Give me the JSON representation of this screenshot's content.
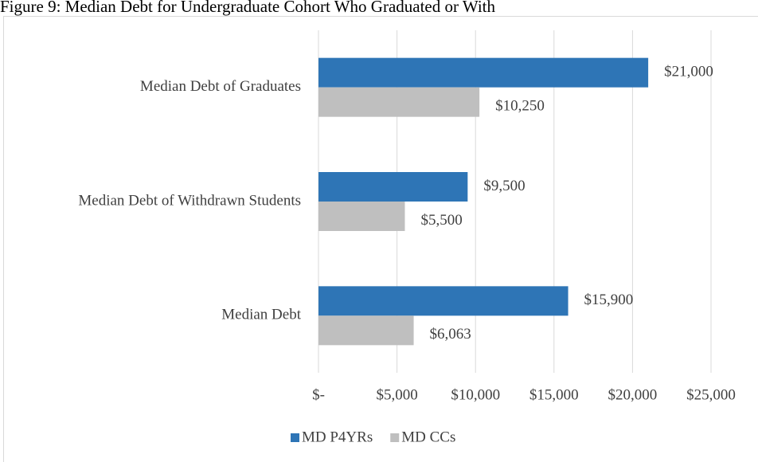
{
  "chart_data": {
    "type": "hbar",
    "title": "Figure 9: Median Debt for Undergraduate Cohort Who Graduated or With",
    "categories": [
      "Median Debt of Graduates",
      "Median Debt of Withdrawn Students",
      "Median Debt"
    ],
    "series": [
      {
        "name": "MD P4YRs",
        "color": "#2e75b6",
        "values": [
          21000,
          9500,
          15900
        ],
        "value_labels": [
          "$21,000",
          "$9,500",
          "$15,900"
        ]
      },
      {
        "name": "MD CCs",
        "color": "#bfbfbf",
        "values": [
          10250,
          5500,
          6063
        ],
        "value_labels": [
          "$10,250",
          "$5,500",
          "$6,063"
        ]
      }
    ],
    "xlim": [
      0,
      25000
    ],
    "xticks": [
      {
        "value": 0,
        "label": "$-"
      },
      {
        "value": 5000,
        "label": "$5,000"
      },
      {
        "value": 10000,
        "label": "$10,000"
      },
      {
        "value": 15000,
        "label": "$15,000"
      },
      {
        "value": 20000,
        "label": "$20,000"
      },
      {
        "value": 25000,
        "label": "$25,000"
      }
    ],
    "grid": true,
    "legend": "bottom"
  }
}
